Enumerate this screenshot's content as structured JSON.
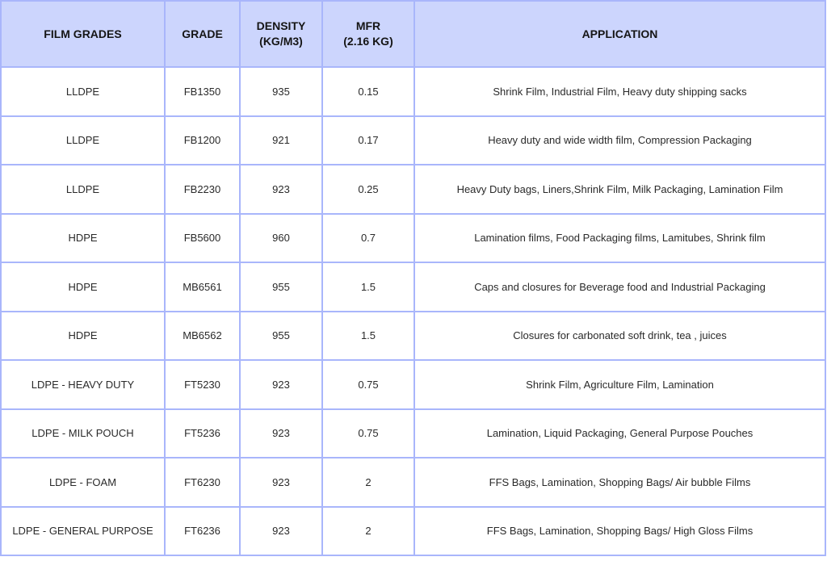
{
  "headers": [
    "FILM GRADES",
    "GRADE",
    "DENSITY\n(KG/M3)",
    "MFR\n(2.16 KG)",
    "APPLICATION"
  ],
  "header_lines": {
    "density": [
      "DENSITY",
      "(KG/M3)"
    ],
    "mfr": [
      "MFR",
      "(2.16 KG)"
    ]
  },
  "rows": [
    [
      "LLDPE",
      "FB1350",
      "935",
      "0.15",
      "Shrink Film, Industrial Film, Heavy duty shipping sacks"
    ],
    [
      "LLDPE",
      "FB1200",
      "921",
      "0.17",
      "Heavy duty and wide width film, Compression Packaging"
    ],
    [
      "LLDPE",
      "FB2230",
      "923",
      "0.25",
      "Heavy Duty bags, Liners,Shrink Film, Milk Packaging, Lamination Film"
    ],
    [
      "HDPE",
      "FB5600",
      "960",
      "0.7",
      "Lamination films, Food Packaging films, Lamitubes, Shrink film"
    ],
    [
      "HDPE",
      "MB6561",
      "955",
      "1.5",
      "Caps and closures for Beverage food and Industrial Packaging"
    ],
    [
      "HDPE",
      "MB6562",
      "955",
      "1.5",
      "Closures for carbonated soft drink, tea , juices"
    ],
    [
      "LDPE - HEAVY DUTY",
      "FT5230",
      "923",
      "0.75",
      "Shrink Film, Agriculture Film, Lamination"
    ],
    [
      "LDPE - MILK POUCH",
      "FT5236",
      "923",
      "0.75",
      "Lamination, Liquid Packaging, General Purpose Pouches"
    ],
    [
      "LDPE - FOAM",
      "FT6230",
      "923",
      "2",
      "FFS Bags, Lamination, Shopping Bags/ Air bubble Films"
    ],
    [
      "LDPE - GENERAL PURPOSE",
      "FT6236",
      "923",
      "2",
      "FFS Bags, Lamination, Shopping Bags/ High Gloss Films"
    ]
  ],
  "colors": {
    "header_bg": "#ccd5fd",
    "border": "#a9b6fb"
  }
}
